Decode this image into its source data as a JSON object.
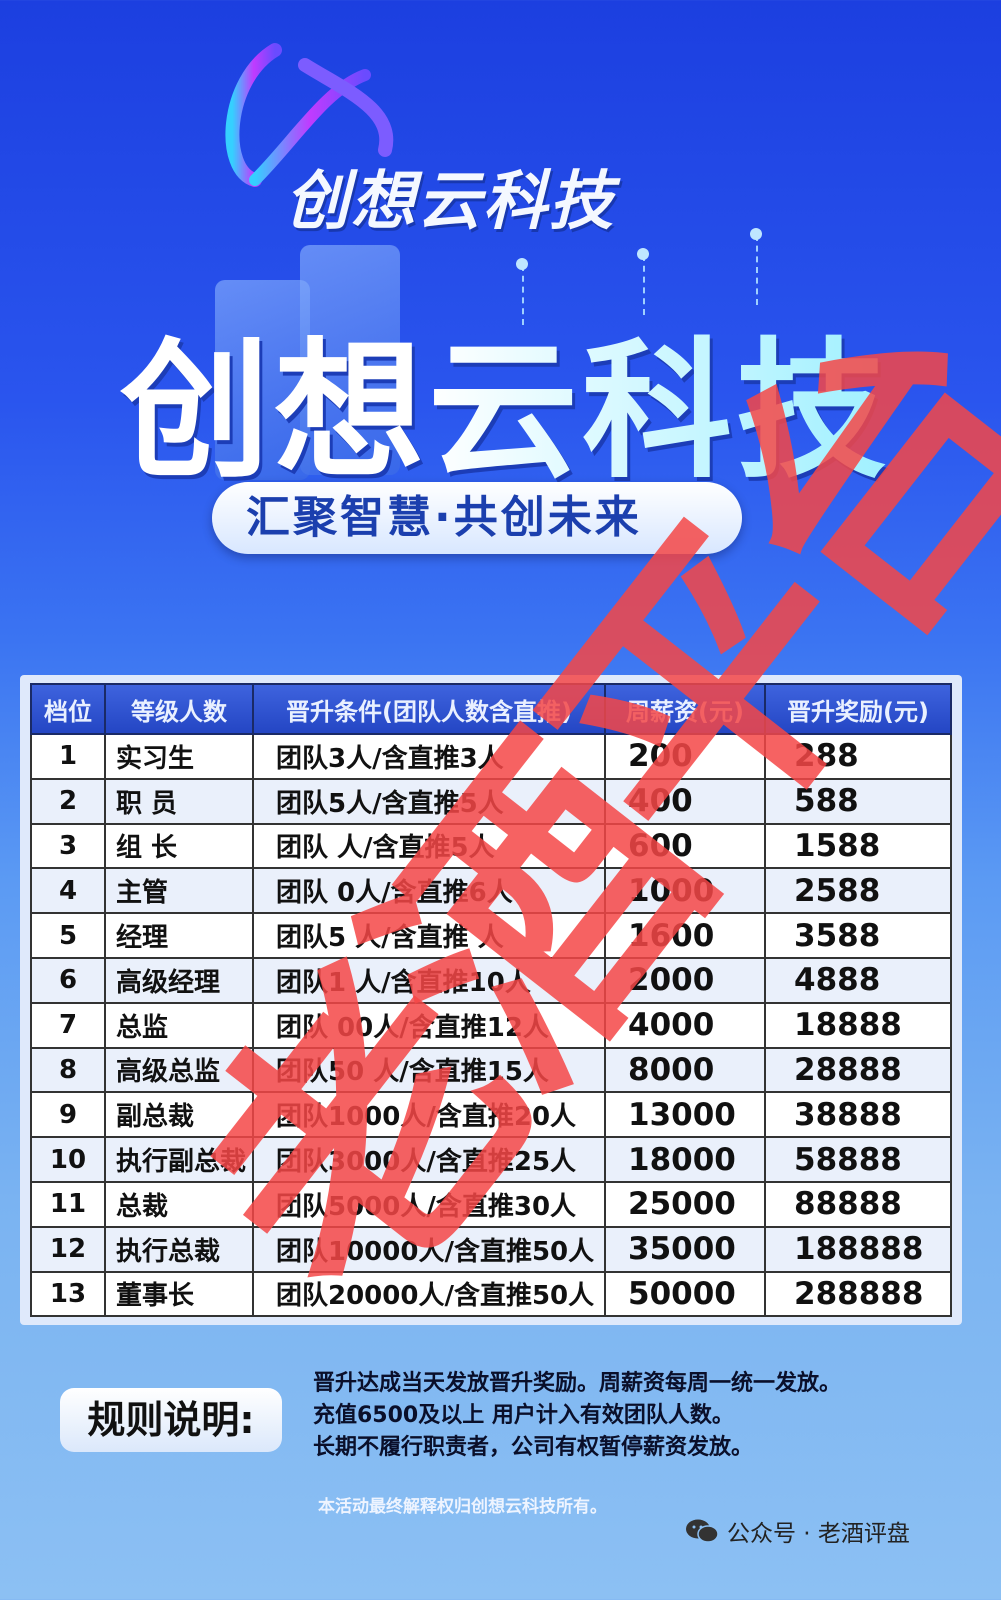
{
  "brand": {
    "logo_text": "创想云科技",
    "headline": "创想云科技",
    "slogan": "汇聚智慧·共创未来"
  },
  "table": {
    "headers": [
      "档位",
      "等级人数",
      "晋升条件(团队人数含直推)",
      "周薪资(元)",
      "晋升奖励(元)"
    ],
    "rows": [
      [
        "1",
        "实习生",
        "团队3人/含直推3人",
        "200",
        "288"
      ],
      [
        "2",
        "职 员",
        "团队5人/含直推5人",
        "400",
        "588"
      ],
      [
        "3",
        "组 长",
        "团队 人/含直推5人",
        "600",
        "1588"
      ],
      [
        "4",
        "主管",
        "团队 0人/含直推6人",
        "1000",
        "2588"
      ],
      [
        "5",
        "经理",
        "团队5 人/含直推 人",
        "1600",
        "3588"
      ],
      [
        "6",
        "高级经理",
        "团队1  人/含直推10人",
        "2000",
        "4888"
      ],
      [
        "7",
        "总监",
        "团队 00人/含直推12人",
        "4000",
        "18888"
      ],
      [
        "8",
        "高级总监",
        "团队50 人/含直推15人",
        "8000",
        "28888"
      ],
      [
        "9",
        "副总裁",
        "团队1000人/含直推20人",
        "13000",
        "38888"
      ],
      [
        "10",
        "执行副总裁",
        "团队3000人/含直推25人",
        "18000",
        "58888"
      ],
      [
        "11",
        "总裁",
        "团队5000人/含直推30人",
        "25000",
        "88888"
      ],
      [
        "12",
        "执行总裁",
        "团队10000人/含直推50人",
        "35000",
        "188888"
      ],
      [
        "13",
        "董事长",
        "团队20000人/含直推50人",
        "50000",
        "288888"
      ]
    ]
  },
  "rules": {
    "label": "规则说明:",
    "lines": [
      "晋升达成当天发放晋升奖励。周薪资每周一统一发放。",
      "充值6500及以上 用户计入有效团队人数。",
      "长期不履行职责者，公司有权暂停薪资发放。"
    ]
  },
  "disclaimer": "本活动最终解释权归创想云科技所有。",
  "watermark": {
    "stamp": "老酒平台",
    "account": "公众号 · 老酒评盘",
    "icon": "wechat-icon"
  },
  "colors": {
    "header_bg": "#2446c4",
    "stamp": "#f54646"
  }
}
